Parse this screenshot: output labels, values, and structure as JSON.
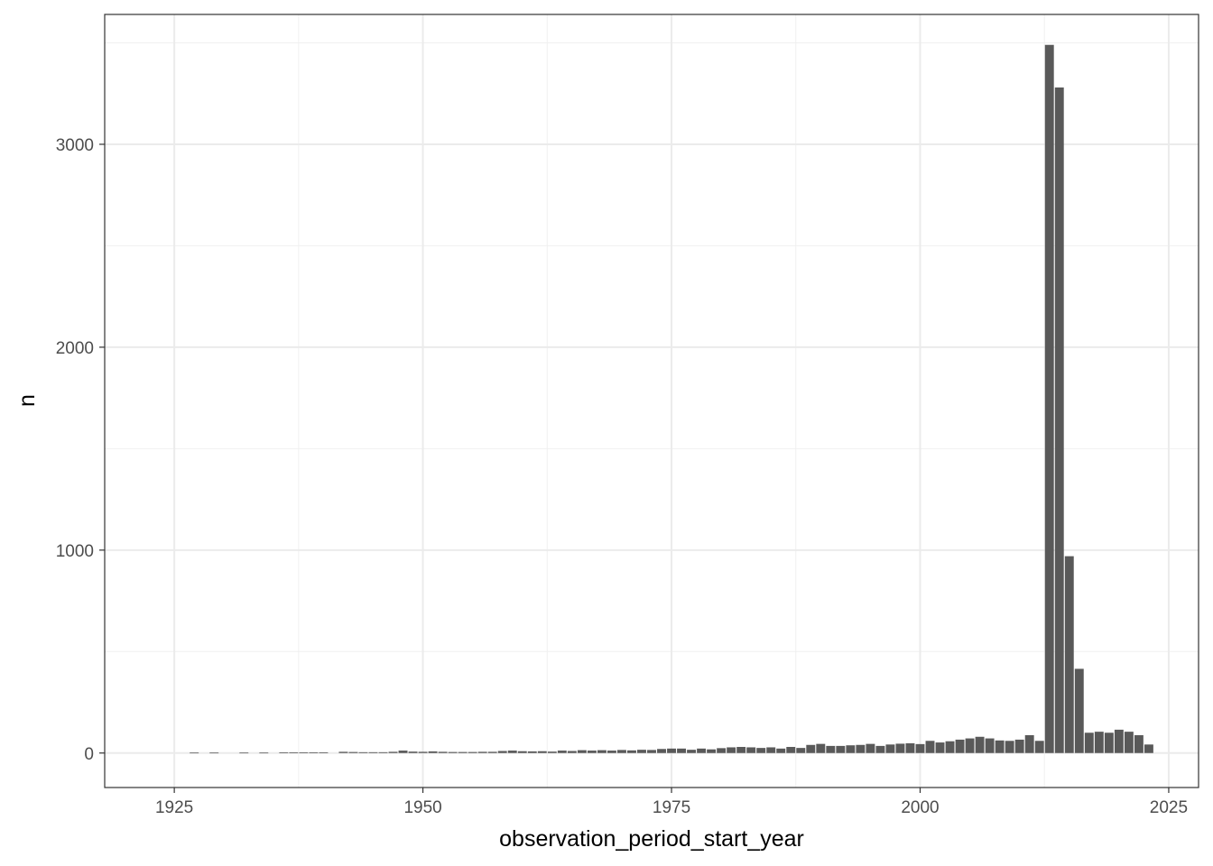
{
  "chart_data": {
    "type": "bar",
    "title": "",
    "xlabel": "observation_period_start_year",
    "ylabel": "n",
    "xlim": [
      1918,
      2028
    ],
    "ylim": [
      -170,
      3640
    ],
    "x_ticks": [
      1925,
      1950,
      1975,
      2000,
      2025
    ],
    "y_ticks": [
      0,
      1000,
      2000,
      3000
    ],
    "x_tick_labels": [
      "1925",
      "1950",
      "1975",
      "2000",
      "2025"
    ],
    "y_tick_labels": [
      "0",
      "1000",
      "2000",
      "3000"
    ],
    "grid": true,
    "legend": "none",
    "bar_color": "#595959",
    "x": [
      1927,
      1929,
      1932,
      1934,
      1936,
      1937,
      1938,
      1939,
      1940,
      1942,
      1943,
      1944,
      1945,
      1946,
      1947,
      1948,
      1949,
      1950,
      1951,
      1952,
      1953,
      1954,
      1955,
      1956,
      1957,
      1958,
      1959,
      1960,
      1961,
      1962,
      1963,
      1964,
      1965,
      1966,
      1967,
      1968,
      1969,
      1970,
      1971,
      1972,
      1973,
      1974,
      1975,
      1976,
      1977,
      1978,
      1979,
      1980,
      1981,
      1982,
      1983,
      1984,
      1985,
      1986,
      1987,
      1988,
      1989,
      1990,
      1991,
      1992,
      1993,
      1994,
      1995,
      1996,
      1997,
      1998,
      1999,
      2000,
      2001,
      2002,
      2003,
      2004,
      2005,
      2006,
      2007,
      2008,
      2009,
      2010,
      2011,
      2012,
      2013,
      2014,
      2015,
      2016,
      2017,
      2018,
      2019,
      2020,
      2021,
      2022,
      2023
    ],
    "values": [
      2,
      2,
      2,
      2,
      3,
      3,
      3,
      3,
      3,
      6,
      5,
      4,
      4,
      4,
      6,
      12,
      7,
      6,
      8,
      6,
      5,
      5,
      5,
      6,
      6,
      10,
      12,
      9,
      8,
      9,
      7,
      12,
      10,
      14,
      12,
      14,
      12,
      15,
      13,
      16,
      15,
      20,
      22,
      22,
      16,
      22,
      18,
      24,
      28,
      30,
      28,
      25,
      28,
      22,
      30,
      25,
      40,
      45,
      35,
      35,
      38,
      40,
      45,
      35,
      42,
      46,
      48,
      44,
      60,
      52,
      58,
      66,
      72,
      80,
      72,
      62,
      60,
      66,
      88,
      60,
      3490,
      3280,
      970,
      415,
      100,
      105,
      100,
      115,
      105,
      88,
      42
    ]
  }
}
